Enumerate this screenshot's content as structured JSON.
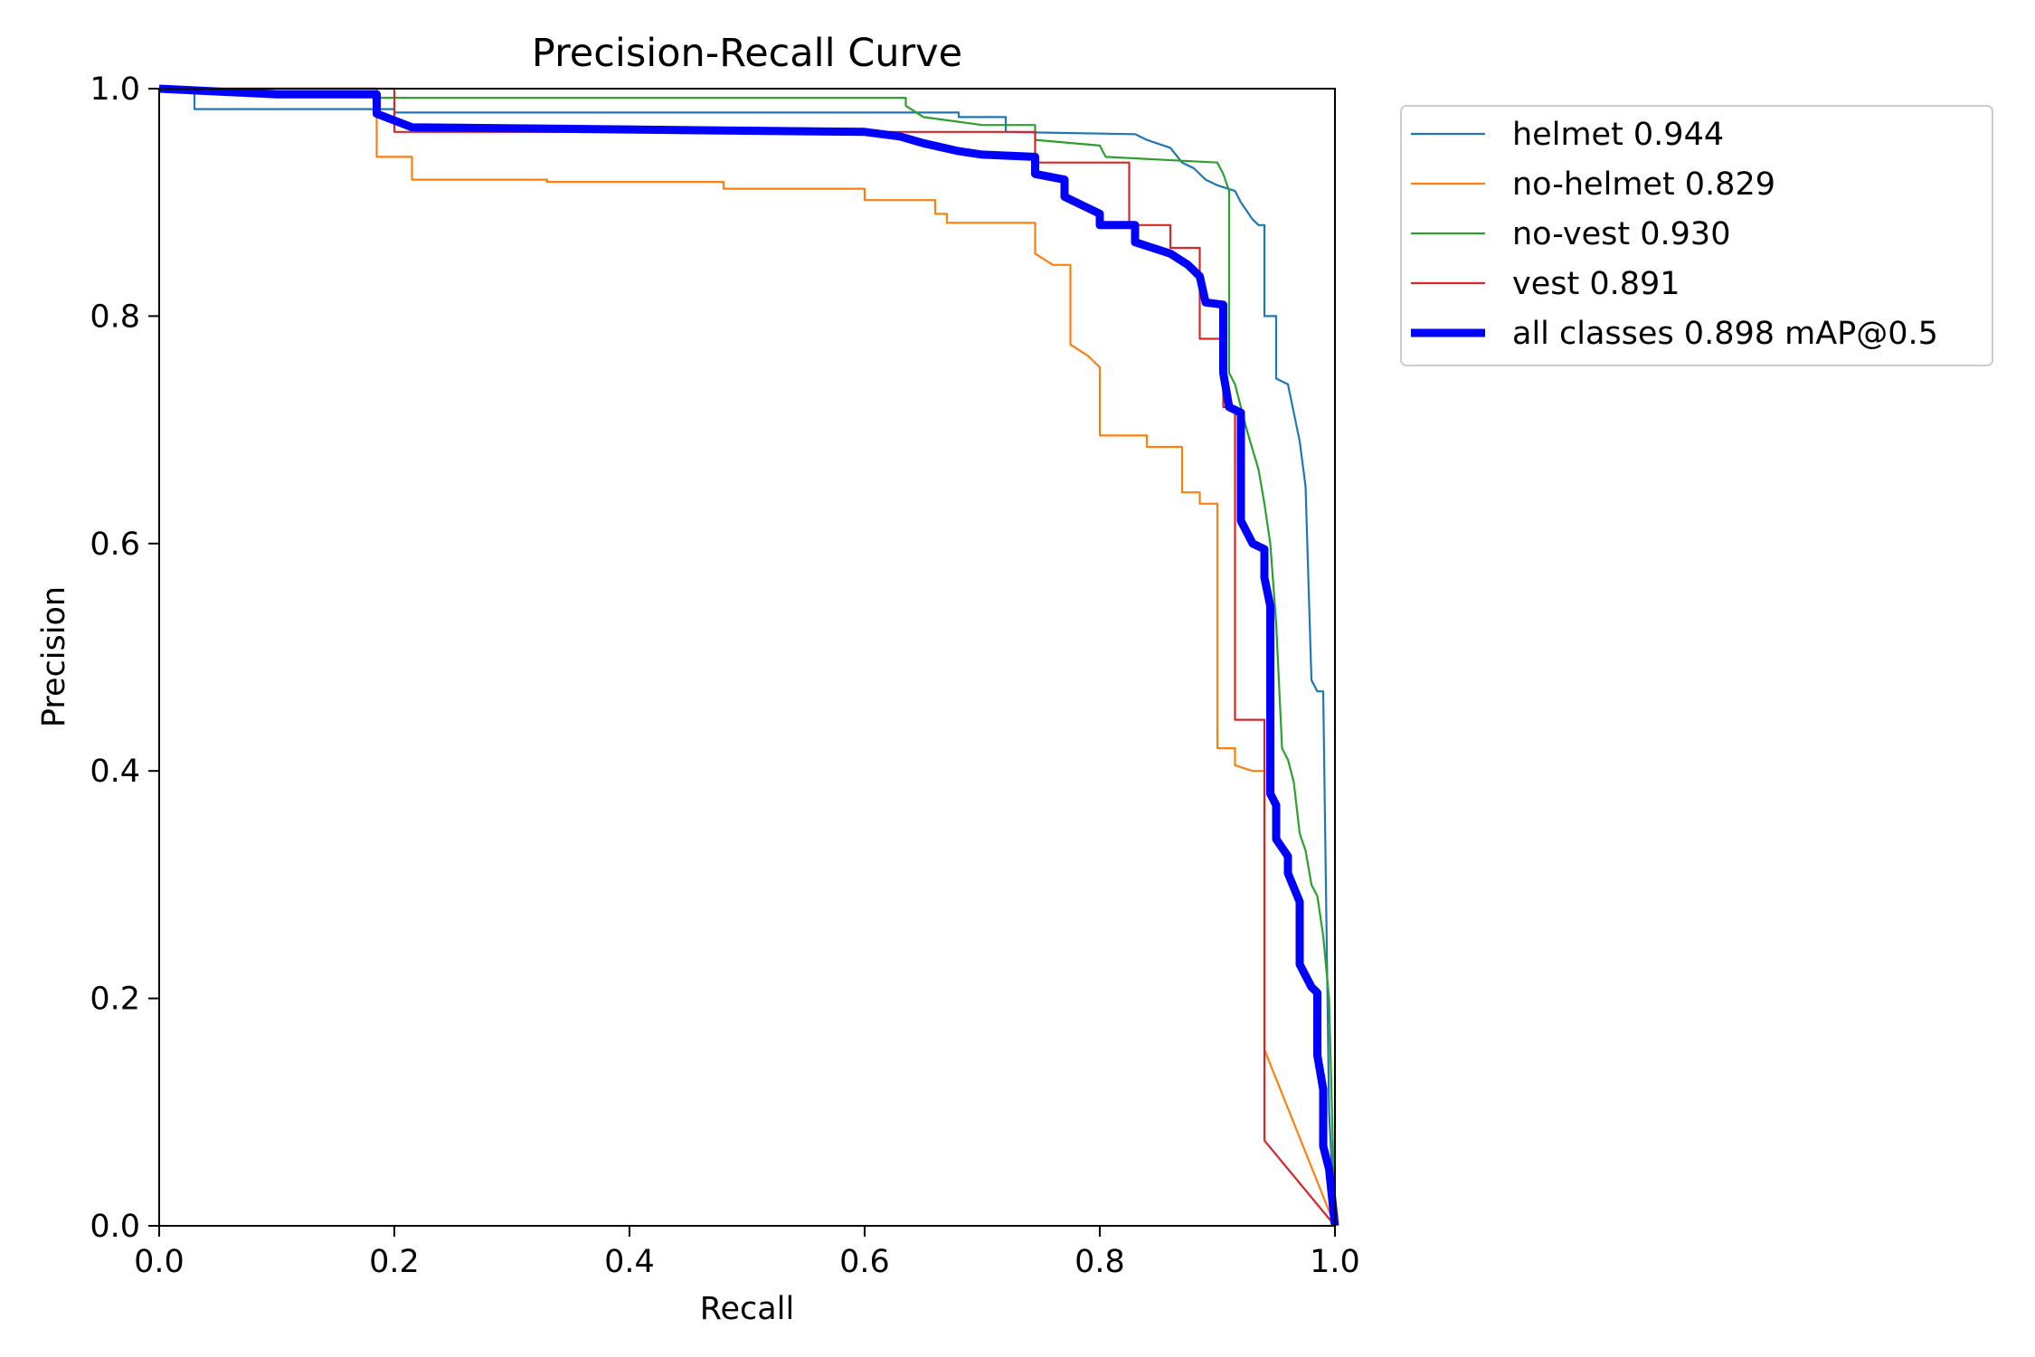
{
  "chart_data": {
    "type": "line",
    "title": "Precision-Recall Curve",
    "xlabel": "Recall",
    "ylabel": "Precision",
    "xlim": [
      0,
      1
    ],
    "ylim": [
      0,
      1
    ],
    "xticks": [
      "0.0",
      "0.2",
      "0.4",
      "0.6",
      "0.8",
      "1.0"
    ],
    "yticks": [
      "0.0",
      "0.2",
      "0.4",
      "0.6",
      "0.8",
      "1.0"
    ],
    "grid": false,
    "legend_position": "outside-upper-right",
    "series": [
      {
        "name": "helmet 0.944",
        "color": "#1f77b4",
        "bold": false,
        "points": [
          [
            0,
            1.0
          ],
          [
            0.03,
            1.0
          ],
          [
            0.03,
            0.982
          ],
          [
            0.2,
            0.982
          ],
          [
            0.2,
            0.979
          ],
          [
            0.68,
            0.979
          ],
          [
            0.68,
            0.975
          ],
          [
            0.72,
            0.975
          ],
          [
            0.72,
            0.962
          ],
          [
            0.83,
            0.96
          ],
          [
            0.84,
            0.955
          ],
          [
            0.86,
            0.948
          ],
          [
            0.87,
            0.935
          ],
          [
            0.88,
            0.93
          ],
          [
            0.89,
            0.92
          ],
          [
            0.9,
            0.915
          ],
          [
            0.915,
            0.91
          ],
          [
            0.92,
            0.9
          ],
          [
            0.93,
            0.885
          ],
          [
            0.935,
            0.88
          ],
          [
            0.94,
            0.88
          ],
          [
            0.94,
            0.8
          ],
          [
            0.95,
            0.8
          ],
          [
            0.95,
            0.745
          ],
          [
            0.96,
            0.74
          ],
          [
            0.965,
            0.715
          ],
          [
            0.97,
            0.69
          ],
          [
            0.975,
            0.65
          ],
          [
            0.98,
            0.48
          ],
          [
            0.985,
            0.47
          ],
          [
            0.99,
            0.47
          ],
          [
            0.995,
            0.1
          ],
          [
            1.0,
            0.0
          ]
        ]
      },
      {
        "name": "no-helmet 0.829",
        "color": "#ff7f0e",
        "bold": false,
        "points": [
          [
            0,
            1.0
          ],
          [
            0.185,
            1.0
          ],
          [
            0.185,
            0.94
          ],
          [
            0.215,
            0.94
          ],
          [
            0.215,
            0.92
          ],
          [
            0.33,
            0.92
          ],
          [
            0.33,
            0.918
          ],
          [
            0.48,
            0.918
          ],
          [
            0.48,
            0.912
          ],
          [
            0.6,
            0.912
          ],
          [
            0.6,
            0.902
          ],
          [
            0.66,
            0.902
          ],
          [
            0.66,
            0.89
          ],
          [
            0.67,
            0.89
          ],
          [
            0.67,
            0.882
          ],
          [
            0.745,
            0.882
          ],
          [
            0.745,
            0.855
          ],
          [
            0.76,
            0.845
          ],
          [
            0.775,
            0.845
          ],
          [
            0.775,
            0.775
          ],
          [
            0.79,
            0.765
          ],
          [
            0.8,
            0.755
          ],
          [
            0.8,
            0.695
          ],
          [
            0.84,
            0.695
          ],
          [
            0.84,
            0.685
          ],
          [
            0.87,
            0.685
          ],
          [
            0.87,
            0.645
          ],
          [
            0.885,
            0.645
          ],
          [
            0.885,
            0.635
          ],
          [
            0.9,
            0.635
          ],
          [
            0.9,
            0.42
          ],
          [
            0.915,
            0.42
          ],
          [
            0.915,
            0.405
          ],
          [
            0.93,
            0.4
          ],
          [
            0.94,
            0.4
          ],
          [
            0.94,
            0.155
          ],
          [
            1.0,
            0.0
          ]
        ]
      },
      {
        "name": "no-vest 0.930",
        "color": "#2ca02c",
        "bold": false,
        "points": [
          [
            0,
            1.0
          ],
          [
            0.185,
            1.0
          ],
          [
            0.185,
            0.992
          ],
          [
            0.635,
            0.992
          ],
          [
            0.635,
            0.985
          ],
          [
            0.65,
            0.975
          ],
          [
            0.7,
            0.968
          ],
          [
            0.745,
            0.968
          ],
          [
            0.745,
            0.955
          ],
          [
            0.8,
            0.95
          ],
          [
            0.805,
            0.94
          ],
          [
            0.9,
            0.935
          ],
          [
            0.905,
            0.925
          ],
          [
            0.91,
            0.91
          ],
          [
            0.91,
            0.75
          ],
          [
            0.915,
            0.74
          ],
          [
            0.92,
            0.72
          ],
          [
            0.925,
            0.7
          ],
          [
            0.935,
            0.665
          ],
          [
            0.94,
            0.635
          ],
          [
            0.945,
            0.6
          ],
          [
            0.95,
            0.53
          ],
          [
            0.955,
            0.42
          ],
          [
            0.96,
            0.41
          ],
          [
            0.965,
            0.39
          ],
          [
            0.97,
            0.345
          ],
          [
            0.975,
            0.33
          ],
          [
            0.98,
            0.3
          ],
          [
            0.985,
            0.29
          ],
          [
            0.99,
            0.255
          ],
          [
            0.995,
            0.2
          ],
          [
            1.0,
            0.0
          ]
        ]
      },
      {
        "name": "vest 0.891",
        "color": "#d62728",
        "bold": false,
        "points": [
          [
            0,
            1.0
          ],
          [
            0.2,
            1.0
          ],
          [
            0.2,
            0.962
          ],
          [
            0.745,
            0.962
          ],
          [
            0.745,
            0.935
          ],
          [
            0.825,
            0.935
          ],
          [
            0.825,
            0.88
          ],
          [
            0.86,
            0.88
          ],
          [
            0.86,
            0.86
          ],
          [
            0.885,
            0.86
          ],
          [
            0.885,
            0.78
          ],
          [
            0.905,
            0.78
          ],
          [
            0.905,
            0.72
          ],
          [
            0.915,
            0.72
          ],
          [
            0.915,
            0.445
          ],
          [
            0.94,
            0.445
          ],
          [
            0.94,
            0.075
          ],
          [
            1.0,
            0.0
          ]
        ]
      },
      {
        "name": "all classes 0.898 mAP@0.5",
        "color": "#0000ff",
        "bold": true,
        "points": [
          [
            0,
            1.0
          ],
          [
            0.1,
            0.995
          ],
          [
            0.185,
            0.995
          ],
          [
            0.185,
            0.978
          ],
          [
            0.2,
            0.972
          ],
          [
            0.215,
            0.966
          ],
          [
            0.5,
            0.963
          ],
          [
            0.6,
            0.962
          ],
          [
            0.63,
            0.958
          ],
          [
            0.65,
            0.952
          ],
          [
            0.68,
            0.945
          ],
          [
            0.7,
            0.942
          ],
          [
            0.745,
            0.94
          ],
          [
            0.745,
            0.925
          ],
          [
            0.77,
            0.92
          ],
          [
            0.77,
            0.905
          ],
          [
            0.79,
            0.895
          ],
          [
            0.8,
            0.89
          ],
          [
            0.8,
            0.88
          ],
          [
            0.83,
            0.88
          ],
          [
            0.83,
            0.865
          ],
          [
            0.86,
            0.855
          ],
          [
            0.875,
            0.845
          ],
          [
            0.885,
            0.835
          ],
          [
            0.89,
            0.812
          ],
          [
            0.905,
            0.81
          ],
          [
            0.905,
            0.75
          ],
          [
            0.91,
            0.72
          ],
          [
            0.92,
            0.715
          ],
          [
            0.92,
            0.62
          ],
          [
            0.93,
            0.6
          ],
          [
            0.94,
            0.595
          ],
          [
            0.94,
            0.57
          ],
          [
            0.945,
            0.545
          ],
          [
            0.945,
            0.38
          ],
          [
            0.95,
            0.37
          ],
          [
            0.95,
            0.34
          ],
          [
            0.96,
            0.325
          ],
          [
            0.96,
            0.31
          ],
          [
            0.97,
            0.285
          ],
          [
            0.97,
            0.23
          ],
          [
            0.98,
            0.21
          ],
          [
            0.985,
            0.205
          ],
          [
            0.985,
            0.15
          ],
          [
            0.99,
            0.12
          ],
          [
            0.99,
            0.07
          ],
          [
            0.995,
            0.05
          ],
          [
            1.0,
            0.0
          ]
        ]
      }
    ]
  }
}
